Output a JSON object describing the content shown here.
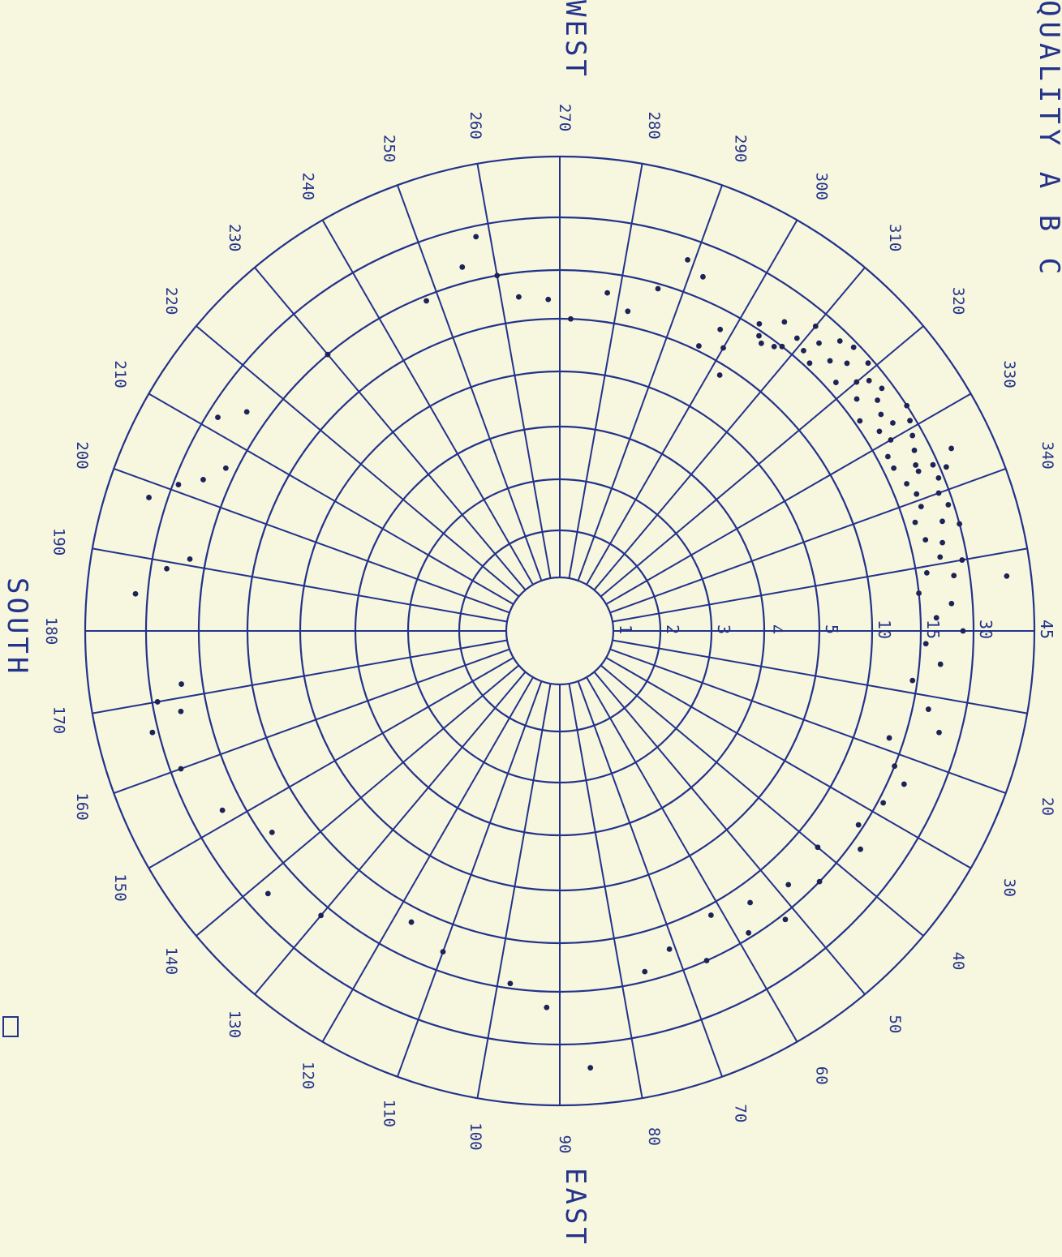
{
  "chart_data": {
    "type": "scatter",
    "title": "QUALITY A B C",
    "directions": {
      "west": "WEST",
      "south": "SOUTH",
      "east": "EAST"
    },
    "ink_color": "#23338a",
    "paper_color": "#f7f6df",
    "azimuth_labels": [
      "20",
      "30",
      "40",
      "50",
      "60",
      "70",
      "80",
      "90",
      "100",
      "110",
      "120",
      "130",
      "140",
      "150",
      "160",
      "170",
      "180",
      "190",
      "200",
      "210",
      "220",
      "230",
      "240",
      "250",
      "260",
      "270",
      "280",
      "290",
      "300",
      "310",
      "320",
      "330",
      "340"
    ],
    "ring_labels": [
      "1",
      "2",
      "3",
      "4",
      "5",
      "10",
      "15",
      "30",
      "45"
    ],
    "points": [
      {
        "az": 353,
        "r": 8.6
      },
      {
        "az": 335,
        "r": 7.6
      },
      {
        "az": 340,
        "r": 7.8
      },
      {
        "az": 339,
        "r": 7.4
      },
      {
        "az": 338,
        "r": 7.9
      },
      {
        "az": 337,
        "r": 7.3
      },
      {
        "az": 336,
        "r": 7.6
      },
      {
        "az": 337,
        "r": 8.1
      },
      {
        "az": 334,
        "r": 7.2
      },
      {
        "az": 336,
        "r": 7.9
      },
      {
        "az": 333,
        "r": 7.7
      },
      {
        "az": 335,
        "r": 8.3
      },
      {
        "az": 332,
        "r": 7.2
      },
      {
        "az": 331,
        "r": 7.8
      },
      {
        "az": 330,
        "r": 7.4
      },
      {
        "az": 329,
        "r": 7.9
      },
      {
        "az": 328,
        "r": 7.6
      },
      {
        "az": 328,
        "r": 7.3
      },
      {
        "az": 327,
        "r": 8.0
      },
      {
        "az": 326,
        "r": 7.5
      },
      {
        "az": 325,
        "r": 7.1
      },
      {
        "az": 324,
        "r": 7.6
      },
      {
        "az": 323,
        "r": 7.8
      },
      {
        "az": 322,
        "r": 7.3
      },
      {
        "az": 321,
        "r": 7.7
      },
      {
        "az": 320,
        "r": 7.5
      },
      {
        "az": 319,
        "r": 7.9
      },
      {
        "az": 318,
        "r": 7.2
      },
      {
        "az": 317,
        "r": 7.6
      },
      {
        "az": 316,
        "r": 7.9
      },
      {
        "az": 315,
        "r": 7.4
      },
      {
        "az": 314,
        "r": 7.8
      },
      {
        "az": 313,
        "r": 7.1
      },
      {
        "az": 312,
        "r": 7.5
      },
      {
        "az": 311,
        "r": 7.2
      },
      {
        "az": 310,
        "r": 7.7
      },
      {
        "az": 309,
        "r": 7.3
      },
      {
        "az": 308,
        "r": 7.0
      },
      {
        "az": 307,
        "r": 6.9
      },
      {
        "az": 306,
        "r": 7.4
      },
      {
        "az": 305,
        "r": 6.8
      },
      {
        "az": 303,
        "r": 7.1
      },
      {
        "az": 341,
        "r": 7.4
      },
      {
        "az": 342,
        "r": 7.9
      },
      {
        "az": 343,
        "r": 7.2
      },
      {
        "az": 344,
        "r": 7.7
      },
      {
        "az": 345,
        "r": 8.0
      },
      {
        "az": 346,
        "r": 7.3
      },
      {
        "az": 347,
        "r": 7.6
      },
      {
        "az": 349,
        "r": 7.5
      },
      {
        "az": 350,
        "r": 7.9
      },
      {
        "az": 351,
        "r": 7.2
      },
      {
        "az": 352,
        "r": 7.7
      },
      {
        "az": 354,
        "r": 7.0
      },
      {
        "az": 356,
        "r": 7.6
      },
      {
        "az": 358,
        "r": 7.3
      },
      {
        "az": 0,
        "r": 7.8
      },
      {
        "az": 2,
        "r": 7.1
      },
      {
        "az": 5,
        "r": 7.4
      },
      {
        "az": 8,
        "r": 6.9
      },
      {
        "az": 12,
        "r": 7.3
      },
      {
        "az": 15,
        "r": 7.6
      },
      {
        "az": 18,
        "r": 6.7
      },
      {
        "az": 22,
        "r": 7.0
      },
      {
        "az": 24,
        "r": 7.3
      },
      {
        "az": 28,
        "r": 7.1
      },
      {
        "az": 33,
        "r": 6.9
      },
      {
        "az": 36,
        "r": 7.2
      },
      {
        "az": 40,
        "r": 6.5
      },
      {
        "az": 44,
        "r": 7.0
      },
      {
        "az": 48,
        "r": 6.6
      },
      {
        "az": 52,
        "r": 7.1
      },
      {
        "az": 55,
        "r": 6.4
      },
      {
        "az": 58,
        "r": 6.9
      },
      {
        "az": 62,
        "r": 6.2
      },
      {
        "az": 66,
        "r": 7.0
      },
      {
        "az": 71,
        "r": 6.5
      },
      {
        "az": 76,
        "r": 6.8
      },
      {
        "az": 86,
        "r": 8.4
      },
      {
        "az": 92,
        "r": 7.3
      },
      {
        "az": 98,
        "r": 6.9
      },
      {
        "az": 110,
        "r": 6.6
      },
      {
        "az": 117,
        "r": 6.3
      },
      {
        "az": 130,
        "r": 7.2
      },
      {
        "az": 138,
        "r": 7.6
      },
      {
        "az": 145,
        "r": 6.8
      },
      {
        "az": 152,
        "r": 7.4
      },
      {
        "az": 160,
        "r": 7.8
      },
      {
        "az": 166,
        "r": 8.1
      },
      {
        "az": 168,
        "r": 7.5
      },
      {
        "az": 170,
        "r": 7.9
      },
      {
        "az": 172,
        "r": 7.4
      },
      {
        "az": 185,
        "r": 8.2
      },
      {
        "az": 189,
        "r": 7.7
      },
      {
        "az": 191,
        "r": 7.3
      },
      {
        "az": 198,
        "r": 8.3
      },
      {
        "az": 201,
        "r": 7.9
      },
      {
        "az": 203,
        "r": 7.5
      },
      {
        "az": 206,
        "r": 7.2
      },
      {
        "az": 212,
        "r": 7.8
      },
      {
        "az": 215,
        "r": 7.4
      },
      {
        "az": 230,
        "r": 7.0
      },
      {
        "az": 248,
        "r": 6.9
      },
      {
        "az": 255,
        "r": 7.3
      },
      {
        "az": 258,
        "r": 7.8
      },
      {
        "az": 260,
        "r": 7.0
      },
      {
        "az": 263,
        "r": 6.5
      },
      {
        "az": 268,
        "r": 6.4
      },
      {
        "az": 272,
        "r": 6.0
      },
      {
        "az": 278,
        "r": 6.6
      },
      {
        "az": 282,
        "r": 6.3
      },
      {
        "az": 286,
        "r": 6.9
      },
      {
        "az": 289,
        "r": 7.6
      },
      {
        "az": 292,
        "r": 7.4
      },
      {
        "az": 296,
        "r": 6.1
      },
      {
        "az": 298,
        "r": 6.6
      },
      {
        "az": 300,
        "r": 6.3
      },
      {
        "az": 302,
        "r": 5.8
      },
      {
        "az": 304,
        "r": 6.9
      }
    ]
  }
}
